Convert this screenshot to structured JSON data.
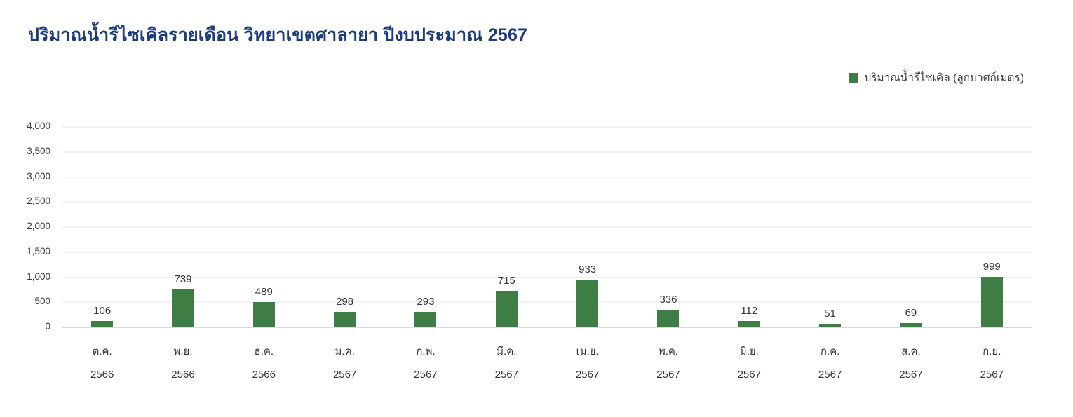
{
  "title": "ปริมาณน้ำรีไซเคิลรายเดือน วิทยาเขตศาลายา ปีงบประมาณ 2567",
  "legend": {
    "label": "ปริมาณน้ำรีไซเคิล (ลูกบาศก์เมตร)"
  },
  "colors": {
    "title": "#1b3b7c",
    "bar": "#3e7e45",
    "gridline": "#f2f2f2",
    "axis_line": "#dadada",
    "text": "#373737"
  },
  "chart_data": {
    "type": "bar",
    "title": "ปริมาณน้ำรีไซเคิลรายเดือน วิทยาเขตศาลายา ปีงบประมาณ 2567",
    "categories": [
      "ต.ค. 2566",
      "พ.ย. 2566",
      "ธ.ค. 2566",
      "ม.ค. 2567",
      "ก.พ. 2567",
      "มี.ค. 2567",
      "เม.ย. 2567",
      "พ.ค. 2567",
      "มิ.ย. 2567",
      "ก.ค. 2567",
      "ส.ค. 2567",
      "ก.ย. 2567"
    ],
    "category_months": [
      "ต.ค.",
      "พ.ย.",
      "ธ.ค.",
      "ม.ค.",
      "ก.พ.",
      "มี.ค.",
      "เม.ย.",
      "พ.ค.",
      "มิ.ย.",
      "ก.ค.",
      "ส.ค.",
      "ก.ย."
    ],
    "category_years": [
      "2566",
      "2566",
      "2566",
      "2567",
      "2567",
      "2567",
      "2567",
      "2567",
      "2567",
      "2567",
      "2567",
      "2567"
    ],
    "values": [
      106,
      739,
      489,
      298,
      293,
      715,
      933,
      336,
      112,
      51,
      69,
      999
    ],
    "xlabel": "",
    "ylabel": "",
    "ylim": [
      0,
      4000
    ],
    "ytick_step": 500,
    "ytick_labels": [
      "0",
      "500",
      "1,000",
      "1,500",
      "2,000",
      "2,500",
      "3,000",
      "3,500",
      "4,000"
    ],
    "grid": true,
    "legend_entries": [
      "ปริมาณน้ำรีไซเคิล (ลูกบาศก์เมตร)"
    ],
    "legend_position": "top-right",
    "bar_color": "#3e7e45",
    "value_labels_shown": true
  }
}
